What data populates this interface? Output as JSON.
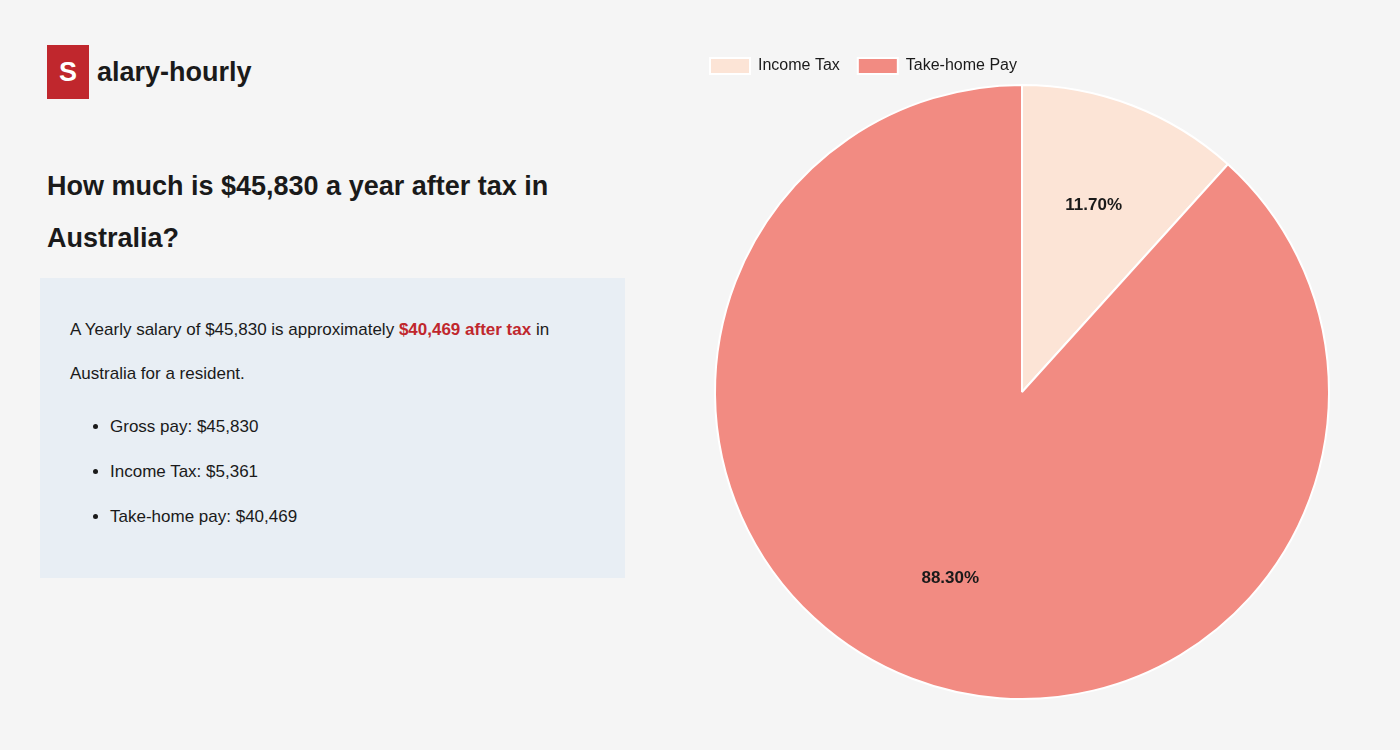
{
  "chart_data": {
    "type": "pie",
    "title": [
      "How much is $45,830 a year after tax in",
      "Australia?"
    ],
    "annotations": {
      "logo": [
        "S",
        "alary-hourly"
      ],
      "body": [
        [
          "A Yearly salary of $45,830 is approximately ",
          "$40,469 after tax",
          " in"
        ],
        [
          "Australia for a resident."
        ]
      ],
      "bullets": [
        "Gross pay: $45,830",
        "Income Tax: $5,361",
        "Take-home pay: $40,469"
      ]
    },
    "categories": [
      "Income Tax",
      "Take-home Pay"
    ],
    "values": [
      11.7,
      88.3
    ],
    "value_labels": [
      "11.70%",
      "88.30%"
    ],
    "colors": [
      "#fce4d6",
      "#f28b82"
    ],
    "data_labels": true,
    "legend": "top left"
  }
}
